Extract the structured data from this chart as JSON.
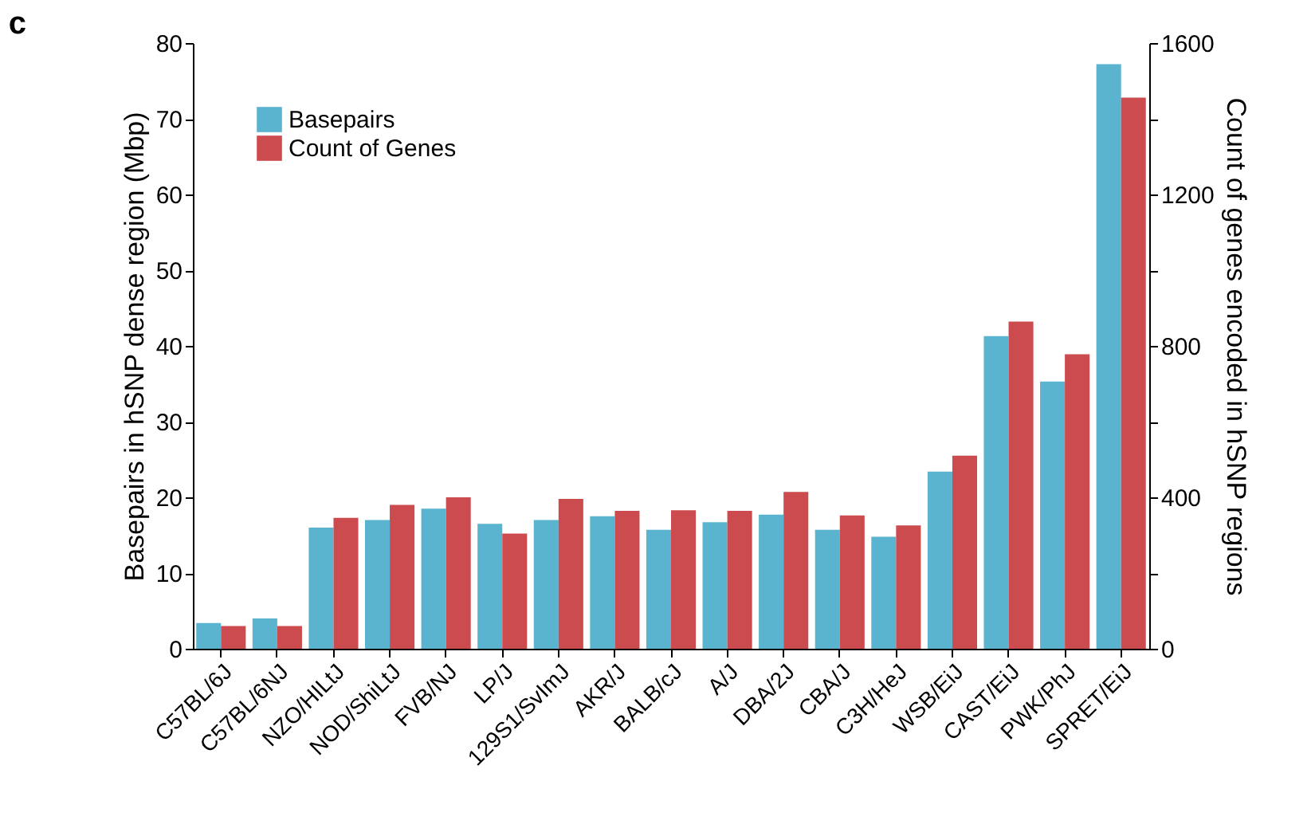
{
  "chart_data": {
    "type": "bar",
    "title": "c",
    "categories": [
      "C57BL/6J",
      "C57BL/6NJ",
      "NZO/HILtJ",
      "NOD/ShiLtJ",
      "FVB/NJ",
      "LP/J",
      "129S1/SvImJ",
      "AKR/J",
      "BALB/cJ",
      "A/J",
      "DBA/2J",
      "CBA/J",
      "C3H/HeJ",
      "WSB/EiJ",
      "CAST/EiJ",
      "PWK/PhJ",
      "SPRET/EiJ"
    ],
    "series": [
      {
        "name": "Basepairs",
        "color": "#5ab4d0",
        "values": [
          3.4,
          4,
          16,
          17,
          18.5,
          16.5,
          17,
          17.5,
          15.7,
          16.7,
          17.7,
          15.7,
          14.8,
          23.4,
          41.3,
          35.3,
          77.2
        ]
      },
      {
        "name": "Count of Genes",
        "color": "#cc4b4f",
        "axis": "y2",
        "values": [
          60,
          60,
          346,
          380,
          400,
          304,
          396,
          364,
          366,
          364,
          414,
          352,
          326,
          510,
          864,
          778,
          1456
        ]
      }
    ],
    "ylabel": "Basepairs in hSNP dense region (Mbp)",
    "y2label": "Count of genes encoded in hSNP regions",
    "ylim": [
      0,
      80
    ],
    "yticks": [
      0,
      10,
      20,
      30,
      40,
      50,
      60,
      70,
      80
    ],
    "y2lim": [
      0,
      1600
    ],
    "y2ticks": [
      0,
      {
        "value": 200,
        "label": null
      },
      400,
      {
        "value": 600,
        "label": null
      },
      800,
      {
        "value": 1000,
        "label": null
      },
      1200,
      {
        "value": 1400,
        "label": null
      },
      1600
    ],
    "grid": false,
    "legend": "top left"
  }
}
